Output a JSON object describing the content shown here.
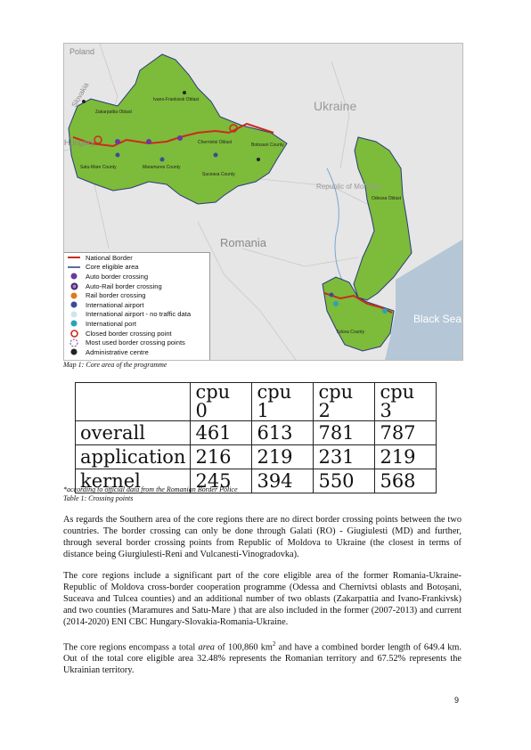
{
  "map": {
    "labels": {
      "poland": "Poland",
      "slovakia": "Slovakia",
      "hungary": "Hungary",
      "ukraine": "Ukraine",
      "moldova": "Republic of Moldova",
      "romania": "Romania",
      "black_sea": "Black Sea",
      "zakarpattia": "Zakarpattia Oblast",
      "ivano": "Ivano-Frankivsk Oblast",
      "chernivtsi": "Chernivtsi Oblast",
      "satu_mare": "Satu-Mare County",
      "maramures": "Maramures County",
      "suceava": "Suceava County",
      "botosani": "Botosani County",
      "odessa": "Odessa Oblast",
      "tulcea": "Tulcea County"
    },
    "legend": [
      {
        "label": "National Border",
        "icon": "red-line"
      },
      {
        "label": "Core eligible area",
        "icon": "navy-line"
      },
      {
        "label": "Auto border crossing",
        "icon": "purple-dot"
      },
      {
        "label": "Auto-Rail border crossing",
        "icon": "purple-ring-dot"
      },
      {
        "label": "Rail border crossing",
        "icon": "orange-dot"
      },
      {
        "label": "International airport",
        "icon": "blue-dot"
      },
      {
        "label": "International airport - no traffic data",
        "icon": "light-dot"
      },
      {
        "label": "International port",
        "icon": "teal-dot"
      },
      {
        "label": "Closed border crossing point",
        "icon": "red-ring"
      },
      {
        "label": "Most used border crossing points",
        "icon": "dashed-ring"
      },
      {
        "label": "Administrative centre",
        "icon": "black-dot"
      }
    ],
    "colors": {
      "region": "#7dbb3a",
      "border": "#cc2a1f",
      "sea": "#b5c7d6",
      "land": "#e6e6e6"
    }
  },
  "map_caption": "Map 1: Core area of the programme",
  "table": {
    "headers": [
      "",
      "cpu 0",
      "cpu 1",
      "cpu 2",
      "cpu 3"
    ],
    "rows": [
      [
        "overall",
        "461",
        "613",
        "781",
        "787"
      ],
      [
        "application",
        "216",
        "219",
        "231",
        "219"
      ],
      [
        "kernel",
        "245",
        "394",
        "550",
        "568"
      ]
    ]
  },
  "table_note": "*according to official data from the Romanian Border Police",
  "table_caption": "Table 1: Crossing points",
  "paragraphs": {
    "p1": "As regards the Southern area of the core regions there are no direct border crossing points between the two countries. The border crossing can only be done through Galati (RO) - Giugiulesti (MD) and further, through several border crossing points from Republic of Moldova to Ukraine (the closest in terms of distance being Giurgiulesti-Reni and Vulcanesti-Vinogradovka).",
    "p2": "The core regions include a significant part of the core eligible area of the former Romania-Ukraine-Republic of Moldova cross-border cooperation programme (Odessa and Chernivtsi oblasts and Botoșani, Suceava and Tulcea counties) and an additional number of two oblasts (Zakarpattia and Ivano-Frankivsk) and two counties (Maramures and Satu-Mare ) that are also included in the former (2007-2013) and current (2014-2020) ENI CBC Hungary-Slovakia-Romania-Ukraine.",
    "p3_a": "The core regions encompass a total ",
    "p3_area": "area",
    "p3_b": " of 100,860 km",
    "p3_sup": "2",
    "p3_c": " and have a combined border length of 649.4 km. Out of the total core eligible area 32.48% represents the Romanian territory and 67.52% represents the Ukrainian territory."
  },
  "page_number": "9"
}
